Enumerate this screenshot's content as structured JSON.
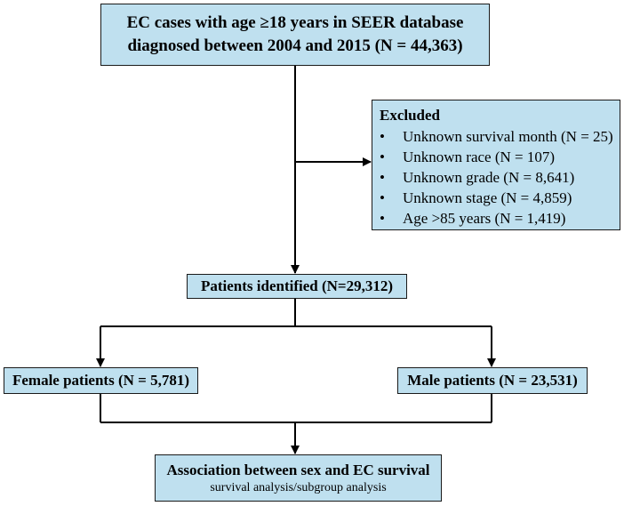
{
  "nodes": {
    "top": {
      "line1": "EC cases with age ≥18 years in SEER database",
      "line2": "diagnosed between 2004 and 2015 (N = 44,363)"
    },
    "excluded": {
      "title": "Excluded",
      "bullet": "•",
      "items": [
        "Unknown survival month (N = 25)",
        "Unknown race (N = 107)",
        "Unknown grade (N = 8,641)",
        "Unknown stage (N = 4,859)",
        "Age >85 years (N = 1,419)"
      ]
    },
    "identified": {
      "label": "Patients identified (N=29,312)"
    },
    "female": {
      "label": "Female patients (N = 5,781)"
    },
    "male": {
      "label": "Male patients (N = 23,531)"
    },
    "association": {
      "line1": "Association between sex and EC survival",
      "line2": "survival analysis/subgroup analysis"
    }
  },
  "colors": {
    "box_fill": "#bfe0ef",
    "line": "#000000"
  }
}
